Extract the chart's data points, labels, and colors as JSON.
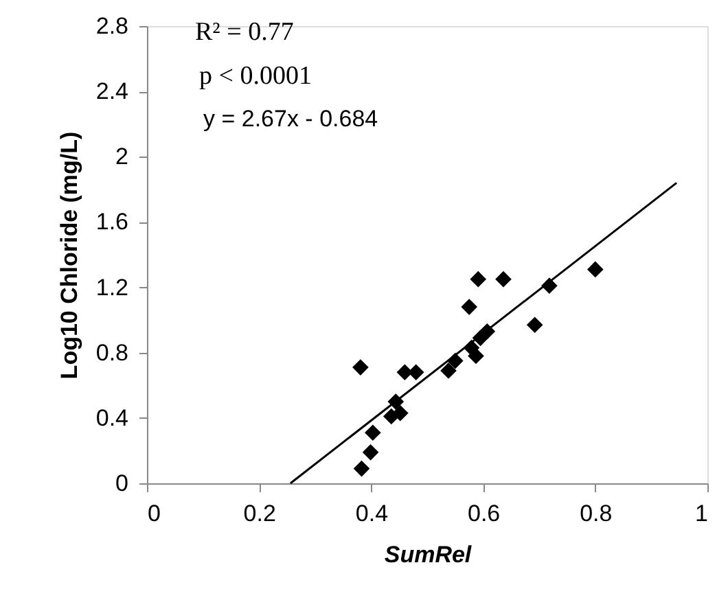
{
  "chart_data": {
    "type": "scatter",
    "xlabel": "SumRel",
    "ylabel": "Log10 Chloride (mg/L)",
    "xlim": [
      0,
      1
    ],
    "xticks": [
      0,
      0.2,
      0.4,
      0.6,
      0.8,
      1
    ],
    "ylim": [
      0,
      2.8
    ],
    "yticks": [
      0,
      0.4,
      0.8,
      1.2,
      1.6,
      2,
      2.4,
      2.8
    ],
    "grid": false,
    "marker": "diamond",
    "annotations": [
      "R² = 0.77",
      "p < 0.0001",
      "y = 2.67x - 0.684"
    ],
    "series": [
      {
        "color": "#000000",
        "x": [
          0.383,
          0.399,
          0.403,
          0.381,
          0.436,
          0.444,
          0.452,
          0.46,
          0.48,
          0.538,
          0.55,
          0.587,
          0.579,
          0.595,
          0.607,
          0.575,
          0.591,
          0.636,
          0.718,
          0.692,
          0.8
        ],
        "values": [
          0.09,
          0.19,
          0.31,
          0.71,
          0.41,
          0.5,
          0.43,
          0.68,
          0.68,
          0.69,
          0.75,
          0.78,
          0.83,
          0.89,
          0.93,
          1.08,
          1.25,
          1.25,
          1.21,
          0.97,
          1.31
        ]
      },
      {
        "type": "line",
        "color": "#000000",
        "line_style": "solid",
        "marker": "none",
        "x": [
          0.256,
          0.945
        ],
        "values": [
          0,
          1.84
        ]
      }
    ]
  }
}
